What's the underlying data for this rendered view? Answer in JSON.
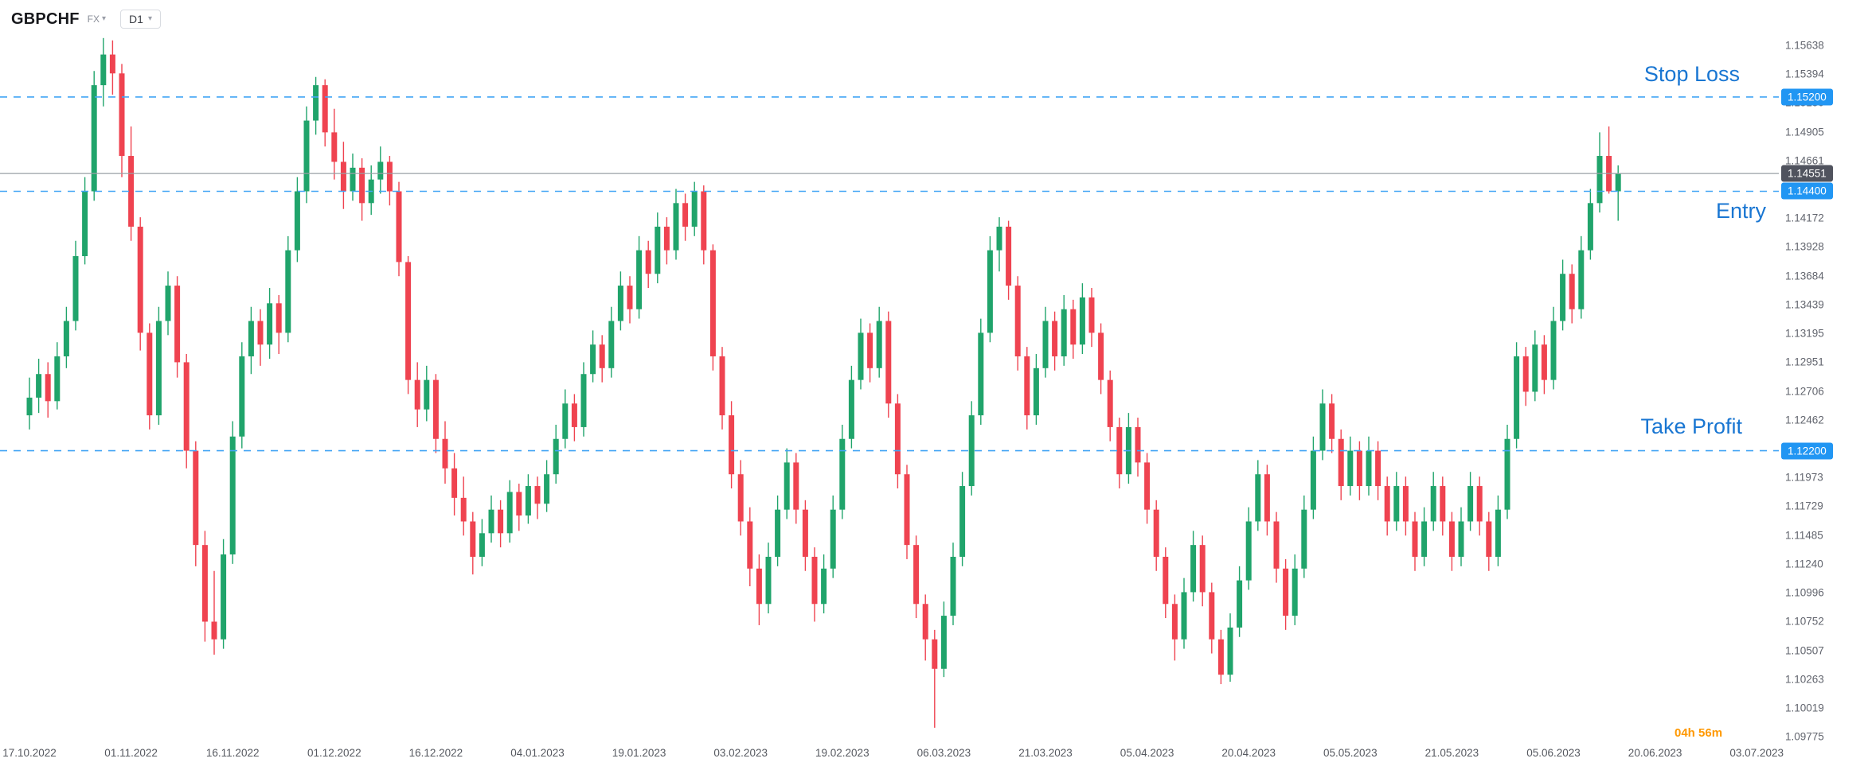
{
  "header": {
    "symbol": "GBPCHF",
    "market_label": "FX",
    "timeframe": "D1"
  },
  "levels": {
    "stop_loss": {
      "label": "Stop Loss",
      "price": 1.152,
      "badge": "1.15200"
    },
    "entry": {
      "label": "Entry",
      "price": 1.144,
      "badge": "1.14400"
    },
    "take_profit": {
      "label": "Take Profit",
      "price": 1.122,
      "badge": "1.12200"
    }
  },
  "current_price": {
    "value": 1.14551,
    "badge": "1.14551"
  },
  "countdown": "04h 56m",
  "y_axis": {
    "ticks": [
      "1.15638",
      "1.15394",
      "1.15150",
      "1.14905",
      "1.14661",
      "1.14417",
      "1.14172",
      "1.13928",
      "1.13684",
      "1.13439",
      "1.13195",
      "1.12951",
      "1.12706",
      "1.12462",
      "1.12218",
      "1.11973",
      "1.11729",
      "1.11485",
      "1.11240",
      "1.10996",
      "1.10752",
      "1.10507",
      "1.10263",
      "1.10019",
      "1.09775"
    ]
  },
  "x_axis": {
    "ticks": [
      {
        "label": "17.10.2022",
        "index": 0
      },
      {
        "label": "01.11.2022",
        "index": 11
      },
      {
        "label": "16.11.2022",
        "index": 22
      },
      {
        "label": "01.12.2022",
        "index": 33
      },
      {
        "label": "16.12.2022",
        "index": 44
      },
      {
        "label": "04.01.2023",
        "index": 55
      },
      {
        "label": "19.01.2023",
        "index": 66
      },
      {
        "label": "03.02.2023",
        "index": 77
      },
      {
        "label": "19.02.2023",
        "index": 88
      },
      {
        "label": "06.03.2023",
        "index": 99
      },
      {
        "label": "21.03.2023",
        "index": 110
      },
      {
        "label": "05.04.2023",
        "index": 121
      },
      {
        "label": "20.04.2023",
        "index": 132
      },
      {
        "label": "05.05.2023",
        "index": 143
      },
      {
        "label": "21.05.2023",
        "index": 154
      },
      {
        "label": "05.06.2023",
        "index": 165
      },
      {
        "label": "20.06.2023",
        "index": 176
      },
      {
        "label": "03.07.2023",
        "index": 187
      }
    ]
  },
  "colors": {
    "background": "#ffffff",
    "candle_up": "#20a46b",
    "candle_down": "#ef4350",
    "level_line": "#42a5f5",
    "level_label": "#1976d2",
    "badge_blue": "#2196f3",
    "badge_gray": "#50535e",
    "current_line": "#9aa0a6",
    "countdown": "#ff9800"
  },
  "chart_data": {
    "type": "candlestick",
    "title": "GBPCHF D1",
    "symbol": "GBPCHF",
    "timeframe": "D1",
    "grid": false,
    "legend": false,
    "price_axis_range": [
      1.09775,
      1.15638
    ],
    "x_range_visible": [
      "17.10.2022",
      "03.07.2023"
    ],
    "horizontal_lines": [
      {
        "name": "stop_loss",
        "price": 1.152,
        "style": "dashed-blue"
      },
      {
        "name": "entry",
        "price": 1.144,
        "style": "dashed-blue"
      },
      {
        "name": "take_profit",
        "price": 1.122,
        "style": "dashed-blue"
      },
      {
        "name": "last_price",
        "price": 1.14551,
        "style": "solid-gray"
      }
    ],
    "ohlc": [
      [
        1.125,
        1.1282,
        1.1238,
        1.1265
      ],
      [
        1.1265,
        1.1298,
        1.1252,
        1.1285
      ],
      [
        1.1285,
        1.1295,
        1.1248,
        1.1262
      ],
      [
        1.1262,
        1.1312,
        1.1255,
        1.13
      ],
      [
        1.13,
        1.1342,
        1.129,
        1.133
      ],
      [
        1.133,
        1.1398,
        1.1322,
        1.1385
      ],
      [
        1.1385,
        1.1452,
        1.1378,
        1.144
      ],
      [
        1.144,
        1.1542,
        1.1432,
        1.153
      ],
      [
        1.153,
        1.157,
        1.1512,
        1.1556
      ],
      [
        1.1556,
        1.1568,
        1.1522,
        1.154
      ],
      [
        1.154,
        1.1548,
        1.1452,
        1.147
      ],
      [
        1.147,
        1.1495,
        1.1398,
        1.141
      ],
      [
        1.141,
        1.1418,
        1.1305,
        1.132
      ],
      [
        1.132,
        1.1328,
        1.1238,
        1.125
      ],
      [
        1.125,
        1.1342,
        1.1242,
        1.133
      ],
      [
        1.133,
        1.1372,
        1.1318,
        1.136
      ],
      [
        1.136,
        1.1368,
        1.1282,
        1.1295
      ],
      [
        1.1295,
        1.1302,
        1.1205,
        1.122
      ],
      [
        1.122,
        1.1228,
        1.1122,
        1.114
      ],
      [
        1.114,
        1.1152,
        1.1058,
        1.1075
      ],
      [
        1.1075,
        1.1118,
        1.1047,
        1.106
      ],
      [
        1.106,
        1.1145,
        1.1052,
        1.1132
      ],
      [
        1.1132,
        1.1245,
        1.1124,
        1.1232
      ],
      [
        1.1232,
        1.1312,
        1.1222,
        1.13
      ],
      [
        1.13,
        1.1342,
        1.1285,
        1.133
      ],
      [
        1.133,
        1.134,
        1.1292,
        1.131
      ],
      [
        1.131,
        1.1358,
        1.1298,
        1.1345
      ],
      [
        1.1345,
        1.1352,
        1.1302,
        1.132
      ],
      [
        1.132,
        1.1402,
        1.1312,
        1.139
      ],
      [
        1.139,
        1.1452,
        1.138,
        1.144
      ],
      [
        1.144,
        1.1512,
        1.143,
        1.15
      ],
      [
        1.15,
        1.1537,
        1.1488,
        1.153
      ],
      [
        1.153,
        1.1535,
        1.1478,
        1.149
      ],
      [
        1.149,
        1.151,
        1.145,
        1.1465
      ],
      [
        1.1465,
        1.1482,
        1.1425,
        1.144
      ],
      [
        1.144,
        1.1472,
        1.1432,
        1.146
      ],
      [
        1.146,
        1.1468,
        1.1415,
        1.143
      ],
      [
        1.143,
        1.1462,
        1.142,
        1.145
      ],
      [
        1.145,
        1.1478,
        1.1438,
        1.1465
      ],
      [
        1.1465,
        1.147,
        1.1428,
        1.144
      ],
      [
        1.144,
        1.1448,
        1.1368,
        1.138
      ],
      [
        1.138,
        1.1385,
        1.1268,
        1.128
      ],
      [
        1.128,
        1.1295,
        1.124,
        1.1255
      ],
      [
        1.1255,
        1.1292,
        1.1245,
        1.128
      ],
      [
        1.128,
        1.1285,
        1.1218,
        1.123
      ],
      [
        1.123,
        1.1245,
        1.1192,
        1.1205
      ],
      [
        1.1205,
        1.1218,
        1.1165,
        1.118
      ],
      [
        1.118,
        1.1198,
        1.1148,
        1.116
      ],
      [
        1.116,
        1.1168,
        1.1115,
        1.113
      ],
      [
        1.113,
        1.1162,
        1.1122,
        1.115
      ],
      [
        1.115,
        1.1182,
        1.1142,
        1.117
      ],
      [
        1.117,
        1.1178,
        1.1138,
        1.115
      ],
      [
        1.115,
        1.1195,
        1.1142,
        1.1185
      ],
      [
        1.1185,
        1.1192,
        1.1152,
        1.1165
      ],
      [
        1.1165,
        1.12,
        1.1158,
        1.119
      ],
      [
        1.119,
        1.1198,
        1.1162,
        1.1175
      ],
      [
        1.1175,
        1.1212,
        1.1168,
        1.12
      ],
      [
        1.12,
        1.1242,
        1.1192,
        1.123
      ],
      [
        1.123,
        1.1272,
        1.1222,
        1.126
      ],
      [
        1.126,
        1.1268,
        1.1228,
        1.124
      ],
      [
        1.124,
        1.1295,
        1.1232,
        1.1285
      ],
      [
        1.1285,
        1.1322,
        1.1278,
        1.131
      ],
      [
        1.131,
        1.1318,
        1.1278,
        1.129
      ],
      [
        1.129,
        1.1342,
        1.1282,
        1.133
      ],
      [
        1.133,
        1.1372,
        1.1322,
        1.136
      ],
      [
        1.136,
        1.1368,
        1.1328,
        1.134
      ],
      [
        1.134,
        1.1402,
        1.1332,
        1.139
      ],
      [
        1.139,
        1.1398,
        1.1358,
        1.137
      ],
      [
        1.137,
        1.1422,
        1.1362,
        1.141
      ],
      [
        1.141,
        1.1418,
        1.1378,
        1.139
      ],
      [
        1.139,
        1.1442,
        1.1382,
        1.143
      ],
      [
        1.143,
        1.1438,
        1.1398,
        1.141
      ],
      [
        1.141,
        1.1448,
        1.1402,
        1.144
      ],
      [
        1.144,
        1.1445,
        1.1378,
        1.139
      ],
      [
        1.139,
        1.1395,
        1.1288,
        1.13
      ],
      [
        1.13,
        1.1308,
        1.1238,
        1.125
      ],
      [
        1.125,
        1.1262,
        1.1188,
        1.12
      ],
      [
        1.12,
        1.1212,
        1.1148,
        1.116
      ],
      [
        1.116,
        1.1172,
        1.1105,
        1.112
      ],
      [
        1.112,
        1.1132,
        1.1072,
        1.109
      ],
      [
        1.109,
        1.1142,
        1.1082,
        1.113
      ],
      [
        1.113,
        1.1182,
        1.1122,
        1.117
      ],
      [
        1.117,
        1.1222,
        1.1162,
        1.121
      ],
      [
        1.121,
        1.1218,
        1.1158,
        1.117
      ],
      [
        1.117,
        1.1178,
        1.1118,
        1.113
      ],
      [
        1.113,
        1.1138,
        1.1075,
        1.109
      ],
      [
        1.109,
        1.1132,
        1.1082,
        1.112
      ],
      [
        1.112,
        1.1182,
        1.1112,
        1.117
      ],
      [
        1.117,
        1.1242,
        1.1162,
        1.123
      ],
      [
        1.123,
        1.1292,
        1.1222,
        1.128
      ],
      [
        1.128,
        1.1332,
        1.1272,
        1.132
      ],
      [
        1.132,
        1.1328,
        1.1278,
        1.129
      ],
      [
        1.129,
        1.1342,
        1.1282,
        1.133
      ],
      [
        1.133,
        1.1338,
        1.1248,
        1.126
      ],
      [
        1.126,
        1.1268,
        1.1188,
        1.12
      ],
      [
        1.12,
        1.1208,
        1.1128,
        1.114
      ],
      [
        1.114,
        1.1148,
        1.1078,
        1.109
      ],
      [
        1.109,
        1.1098,
        1.1042,
        1.106
      ],
      [
        1.106,
        1.1068,
        1.0985,
        1.1035
      ],
      [
        1.1035,
        1.1092,
        1.1028,
        1.108
      ],
      [
        1.108,
        1.1142,
        1.1072,
        1.113
      ],
      [
        1.113,
        1.1202,
        1.1122,
        1.119
      ],
      [
        1.119,
        1.1262,
        1.1182,
        1.125
      ],
      [
        1.125,
        1.1332,
        1.1242,
        1.132
      ],
      [
        1.132,
        1.1402,
        1.1312,
        1.139
      ],
      [
        1.139,
        1.1418,
        1.1372,
        1.141
      ],
      [
        1.141,
        1.1415,
        1.1348,
        1.136
      ],
      [
        1.136,
        1.1368,
        1.1288,
        1.13
      ],
      [
        1.13,
        1.1308,
        1.1238,
        1.125
      ],
      [
        1.125,
        1.1302,
        1.1242,
        1.129
      ],
      [
        1.129,
        1.1342,
        1.1282,
        1.133
      ],
      [
        1.133,
        1.1338,
        1.1288,
        1.13
      ],
      [
        1.13,
        1.1352,
        1.1292,
        1.134
      ],
      [
        1.134,
        1.1348,
        1.1298,
        1.131
      ],
      [
        1.131,
        1.1362,
        1.1302,
        1.135
      ],
      [
        1.135,
        1.1358,
        1.1308,
        1.132
      ],
      [
        1.132,
        1.1328,
        1.1268,
        1.128
      ],
      [
        1.128,
        1.1288,
        1.1228,
        1.124
      ],
      [
        1.124,
        1.1248,
        1.1188,
        1.12
      ],
      [
        1.12,
        1.1252,
        1.1192,
        1.124
      ],
      [
        1.124,
        1.1248,
        1.1198,
        1.121
      ],
      [
        1.121,
        1.1218,
        1.1158,
        1.117
      ],
      [
        1.117,
        1.1178,
        1.1118,
        1.113
      ],
      [
        1.113,
        1.1138,
        1.1078,
        1.109
      ],
      [
        1.109,
        1.1098,
        1.1042,
        1.106
      ],
      [
        1.106,
        1.1112,
        1.1052,
        1.11
      ],
      [
        1.11,
        1.1152,
        1.1092,
        1.114
      ],
      [
        1.114,
        1.1148,
        1.1088,
        1.11
      ],
      [
        1.11,
        1.1108,
        1.1048,
        1.106
      ],
      [
        1.106,
        1.1068,
        1.1022,
        1.103
      ],
      [
        1.103,
        1.1082,
        1.1024,
        1.107
      ],
      [
        1.107,
        1.1122,
        1.1062,
        1.111
      ],
      [
        1.111,
        1.1172,
        1.1102,
        1.116
      ],
      [
        1.116,
        1.1212,
        1.1152,
        1.12
      ],
      [
        1.12,
        1.1208,
        1.1148,
        1.116
      ],
      [
        1.116,
        1.1168,
        1.1108,
        1.112
      ],
      [
        1.112,
        1.1128,
        1.1068,
        1.108
      ],
      [
        1.108,
        1.1132,
        1.1072,
        1.112
      ],
      [
        1.112,
        1.1182,
        1.1112,
        1.117
      ],
      [
        1.117,
        1.1232,
        1.1162,
        1.122
      ],
      [
        1.122,
        1.1272,
        1.1212,
        1.126
      ],
      [
        1.126,
        1.1268,
        1.1218,
        1.123
      ],
      [
        1.123,
        1.1238,
        1.1178,
        1.119
      ],
      [
        1.119,
        1.1232,
        1.1182,
        1.122
      ],
      [
        1.122,
        1.1228,
        1.1178,
        1.119
      ],
      [
        1.119,
        1.1232,
        1.1182,
        1.122
      ],
      [
        1.122,
        1.1228,
        1.1178,
        1.119
      ],
      [
        1.119,
        1.1198,
        1.1148,
        1.116
      ],
      [
        1.116,
        1.1202,
        1.1152,
        1.119
      ],
      [
        1.119,
        1.1198,
        1.1148,
        1.116
      ],
      [
        1.116,
        1.1168,
        1.1118,
        1.113
      ],
      [
        1.113,
        1.1172,
        1.1122,
        1.116
      ],
      [
        1.116,
        1.1202,
        1.1152,
        1.119
      ],
      [
        1.119,
        1.1198,
        1.1148,
        1.116
      ],
      [
        1.116,
        1.1168,
        1.1118,
        1.113
      ],
      [
        1.113,
        1.1172,
        1.1122,
        1.116
      ],
      [
        1.116,
        1.1202,
        1.1152,
        1.119
      ],
      [
        1.119,
        1.1198,
        1.1148,
        1.116
      ],
      [
        1.116,
        1.1168,
        1.1118,
        1.113
      ],
      [
        1.113,
        1.1182,
        1.1122,
        1.117
      ],
      [
        1.117,
        1.1242,
        1.1162,
        1.123
      ],
      [
        1.123,
        1.1312,
        1.1222,
        1.13
      ],
      [
        1.13,
        1.1308,
        1.1258,
        1.127
      ],
      [
        1.127,
        1.1322,
        1.1262,
        1.131
      ],
      [
        1.131,
        1.1318,
        1.1268,
        1.128
      ],
      [
        1.128,
        1.1342,
        1.1272,
        1.133
      ],
      [
        1.133,
        1.1382,
        1.1322,
        1.137
      ],
      [
        1.137,
        1.1378,
        1.1328,
        1.134
      ],
      [
        1.134,
        1.1402,
        1.1332,
        1.139
      ],
      [
        1.139,
        1.1442,
        1.1382,
        1.143
      ],
      [
        1.143,
        1.149,
        1.1422,
        1.147
      ],
      [
        1.147,
        1.1495,
        1.1438,
        1.144
      ],
      [
        1.144,
        1.1462,
        1.1415,
        1.14551
      ]
    ]
  }
}
